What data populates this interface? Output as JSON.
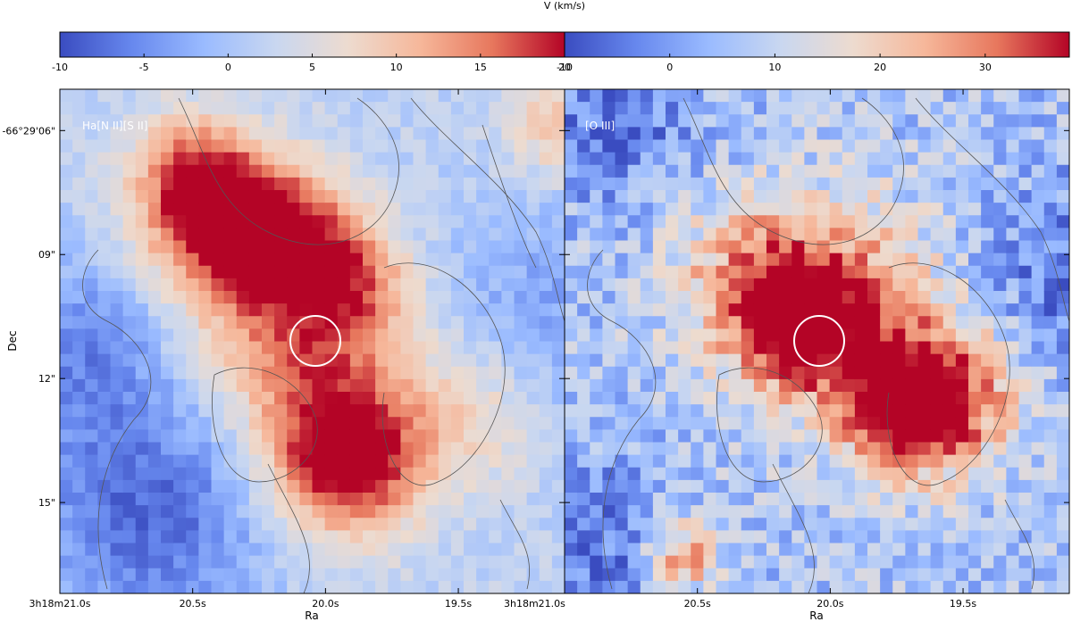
{
  "colorbar_title": "V (km/s)",
  "colors": {
    "cmap": [
      "#3a4cc0",
      "#6788ee",
      "#9abbff",
      "#c9d7f0",
      "#eddbcf",
      "#f6b79a",
      "#e7775d",
      "#b40426"
    ],
    "circle": "#ffffff",
    "contour": "#555555"
  },
  "chart_data": [
    {
      "type": "heatmap",
      "panel_label": "Ha[N II][S II]",
      "colorbar": {
        "vmin": -10,
        "vmax": 20,
        "ticks": [
          -10,
          -5,
          0,
          5,
          10,
          15,
          20
        ]
      },
      "xlabel": "Ra",
      "ylabel": "Dec",
      "x_tick_labels": [
        "3h18m21.0s",
        "20.5s",
        "20.0s",
        "19.5s"
      ],
      "y_tick_labels": [
        "-66°29'06\"",
        "09\"",
        "12\"",
        "15\""
      ],
      "blobs": [
        {
          "ra_s": 20.42,
          "dec_s": 8.1,
          "v": 21,
          "r_s": 1.2
        },
        {
          "ra_s": 20.12,
          "dec_s": 8.5,
          "v": 17,
          "r_s": 1.1
        },
        {
          "ra_s": 19.88,
          "dec_s": 9.8,
          "v": 13,
          "r_s": 1.0
        },
        {
          "ra_s": 19.92,
          "dec_s": 14.1,
          "v": 22,
          "r_s": 1.2
        },
        {
          "ra_s": 19.98,
          "dec_s": 12.6,
          "v": 12,
          "r_s": 1.5
        },
        {
          "ra_s": 20.2,
          "dec_s": 10.4,
          "v": 13,
          "r_s": 1.6
        },
        {
          "ra_s": 19.45,
          "dec_s": 12.8,
          "v": 10,
          "r_s": 1.3
        },
        {
          "ra_s": 20.5,
          "dec_s": 6.9,
          "v": 12,
          "r_s": 1.0
        },
        {
          "ra_s": 20.66,
          "dec_s": 15.3,
          "v": -9,
          "r_s": 2.0
        },
        {
          "ra_s": 20.9,
          "dec_s": 11.2,
          "v": -6,
          "r_s": 1.6
        },
        {
          "ra_s": 19.15,
          "dec_s": 10.6,
          "v": -4,
          "r_s": 2.2
        },
        {
          "ra_s": 19.1,
          "dec_s": 5.9,
          "v": 12,
          "r_s": 0.9
        }
      ],
      "background_v": 2
    },
    {
      "type": "heatmap",
      "panel_label": "[O III]",
      "colorbar": {
        "vmin": -10,
        "vmax": 38,
        "ticks": [
          -10,
          0,
          10,
          20,
          30
        ]
      },
      "xlabel": "Ra",
      "y_tick_labels": [],
      "x_tick_labels": [
        "3h18m21.0s",
        "20.5s",
        "20.0s",
        "19.5s"
      ],
      "blobs": [
        {
          "ra_s": 20.12,
          "dec_s": 10.7,
          "v": 34,
          "r_s": 1.1
        },
        {
          "ra_s": 19.72,
          "dec_s": 12.8,
          "v": 38,
          "r_s": 1.1
        },
        {
          "ra_s": 19.95,
          "dec_s": 10.2,
          "v": 28,
          "r_s": 1.8
        },
        {
          "ra_s": 20.3,
          "dec_s": 9.5,
          "v": 22,
          "r_s": 1.4
        },
        {
          "ra_s": 19.55,
          "dec_s": 12.4,
          "v": 30,
          "r_s": 1.2
        },
        {
          "ra_s": 20.55,
          "dec_s": 16.3,
          "v": 30,
          "r_s": 0.6
        },
        {
          "ra_s": 20.95,
          "dec_s": 16.0,
          "v": -8,
          "r_s": 1.4
        },
        {
          "ra_s": 19.1,
          "dec_s": 9.5,
          "v": -7,
          "r_s": 1.6
        },
        {
          "ra_s": 20.8,
          "dec_s": 5.8,
          "v": -6,
          "r_s": 1.4
        }
      ],
      "background_v": 6
    }
  ]
}
